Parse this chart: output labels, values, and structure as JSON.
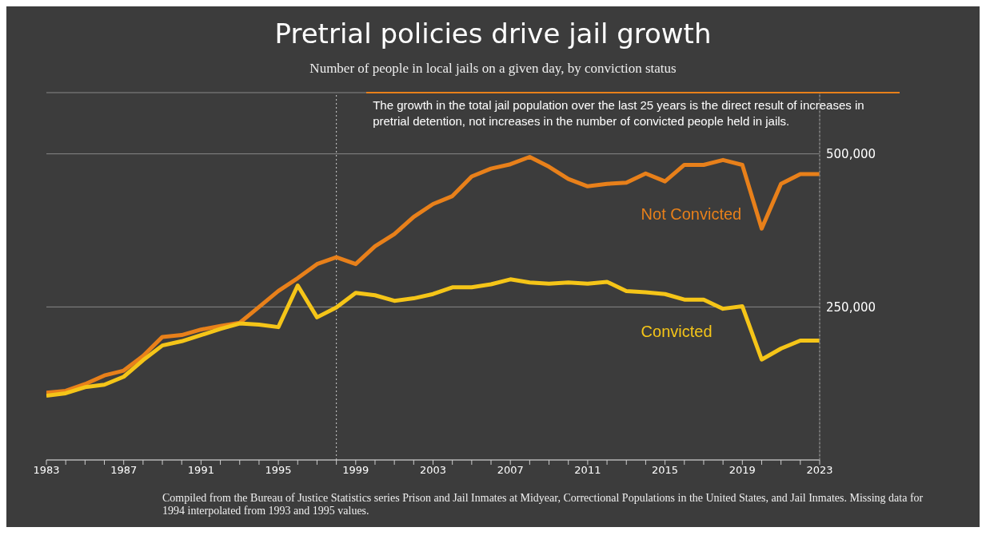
{
  "chart_data": {
    "type": "line",
    "title": "Pretrial policies drive jail growth",
    "subtitle": "Number of people in local jails on a given day, by conviction status",
    "x": [
      1983,
      1984,
      1985,
      1986,
      1987,
      1988,
      1989,
      1990,
      1991,
      1992,
      1993,
      1994,
      1995,
      1996,
      1997,
      1998,
      1999,
      2000,
      2001,
      2002,
      2003,
      2004,
      2005,
      2006,
      2007,
      2008,
      2009,
      2010,
      2011,
      2012,
      2013,
      2014,
      2015,
      2016,
      2017,
      2018,
      2019,
      2020,
      2021,
      2022,
      2023
    ],
    "series": [
      {
        "name": "Not Convicted",
        "color": "#e8801a",
        "values": [
          110000,
          113000,
          124000,
          138000,
          146000,
          170000,
          201000,
          204000,
          213000,
          219000,
          224000,
          250000,
          276000,
          297000,
          320000,
          331000,
          320000,
          349000,
          369000,
          397000,
          418000,
          431000,
          463000,
          476000,
          483000,
          495000,
          479000,
          459000,
          447000,
          451000,
          453000,
          468000,
          455000,
          482000,
          482000,
          490000,
          482000,
          378000,
          451000,
          467000,
          467000
        ]
      },
      {
        "name": "Convicted",
        "color": "#f5c518",
        "values": [
          105000,
          109000,
          119000,
          123000,
          136000,
          163000,
          187000,
          194000,
          204000,
          214000,
          223000,
          221000,
          217000,
          285000,
          233000,
          249000,
          273000,
          269000,
          260000,
          264000,
          271000,
          282000,
          282000,
          287000,
          295000,
          290000,
          288000,
          290000,
          288000,
          291000,
          276000,
          274000,
          271000,
          262000,
          262000,
          247000,
          251000,
          164000,
          182000,
          195000,
          195000
        ]
      }
    ],
    "xlim": [
      1983,
      2023
    ],
    "xticks": [
      1983,
      {
        "value": 1984,
        "label": null
      },
      {
        "value": 1985,
        "label": null
      },
      {
        "value": 1986,
        "label": null
      },
      1987,
      {
        "value": 1988,
        "label": null
      },
      {
        "value": 1989,
        "label": null
      },
      {
        "value": 1990,
        "label": null
      },
      1991,
      {
        "value": 1992,
        "label": null
      },
      {
        "value": 1993,
        "label": null
      },
      {
        "value": 1994,
        "label": null
      },
      1995,
      {
        "value": 1996,
        "label": null
      },
      {
        "value": 1997,
        "label": null
      },
      {
        "value": 1998,
        "label": null
      },
      1999,
      {
        "value": 2000,
        "label": null
      },
      {
        "value": 2001,
        "label": null
      },
      {
        "value": 2002,
        "label": null
      },
      2003,
      {
        "value": 2004,
        "label": null
      },
      {
        "value": 2005,
        "label": null
      },
      {
        "value": 2006,
        "label": null
      },
      2007,
      {
        "value": 2008,
        "label": null
      },
      {
        "value": 2009,
        "label": null
      },
      {
        "value": 2010,
        "label": null
      },
      2011,
      {
        "value": 2012,
        "label": null
      },
      {
        "value": 2013,
        "label": null
      },
      {
        "value": 2014,
        "label": null
      },
      2015,
      {
        "value": 2016,
        "label": null
      },
      {
        "value": 2017,
        "label": null
      },
      {
        "value": 2018,
        "label": null
      },
      2019,
      {
        "value": 2020,
        "label": null
      },
      {
        "value": 2021,
        "label": null
      },
      {
        "value": 2022,
        "label": null
      },
      2023
    ],
    "ylim": [
      0,
      600000
    ],
    "yticks": [
      {
        "value": 250000,
        "label": "250,000"
      },
      {
        "value": 500000,
        "label": "500,000"
      }
    ],
    "grid": "y",
    "legend": false,
    "marker": "none",
    "line_style": "solid",
    "ref_lines": [
      {
        "axis": "x",
        "value": 1998,
        "color": "#cccccc",
        "line_style": "dotted"
      },
      {
        "axis": "x",
        "value": 2023,
        "color": "#cccccc",
        "line_style": "dotted"
      }
    ],
    "annotations": [
      "The growth in the total jail population over the last 25 years is the direct result of increases in pretrial detention, not increases in the number of convicted people held in jails.",
      "Compiled from the Bureau of Justice Statistics series Prison and Jail Inmates at Midyear, Correctional Populations in the United States, and Jail Inmates. Missing data for 1994 interpolated from 1993 and 1995 values."
    ]
  }
}
